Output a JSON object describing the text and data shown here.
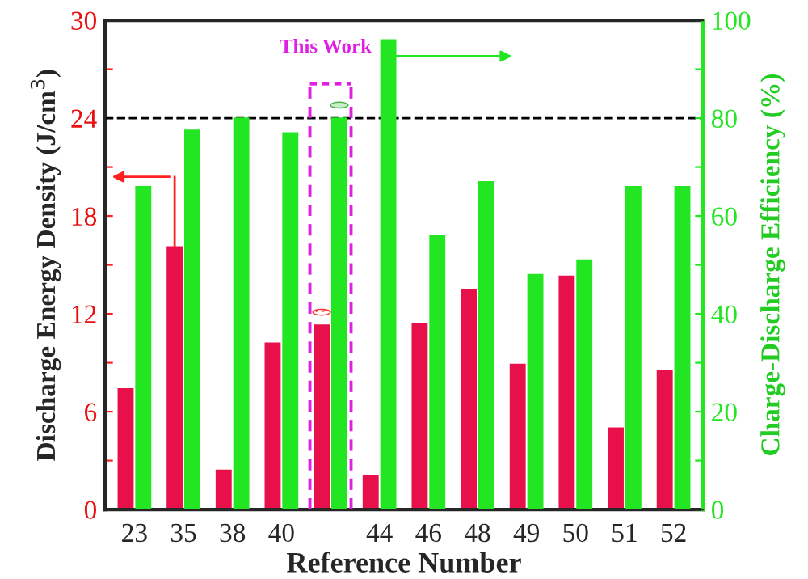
{
  "chart_data": {
    "type": "bar",
    "xlabel": "Reference Number",
    "ylabel": "Discharge Energy Density (J/cm$^{3}$)",
    "y2label": "Charge-Discharge Efficiency (%)",
    "categories": [
      "23",
      "35",
      "38",
      "40",
      null,
      "44",
      "46",
      "48",
      "49",
      "50",
      "51",
      "52"
    ],
    "series": [
      {
        "color": "#e8104a",
        "values": [
          7.4,
          16.1,
          2.4,
          10.2,
          11.3,
          2.1,
          11.4,
          13.5,
          8.9,
          14.3,
          5.0,
          8.5
        ]
      },
      {
        "color": "#22e622",
        "axis": "y2",
        "values": [
          66,
          77.5,
          80,
          77,
          80,
          96,
          56,
          67,
          48,
          51,
          66,
          66
        ]
      }
    ],
    "ylim": [
      0,
      30
    ],
    "yticks": [
      0,
      {
        "value": 3,
        "label": null
      },
      6,
      {
        "value": 9,
        "label": null
      },
      12,
      {
        "value": 15,
        "label": null
      },
      18,
      {
        "value": 21,
        "label": null
      },
      24,
      {
        "value": 27,
        "label": null
      },
      30
    ],
    "y2lim": [
      0,
      100
    ],
    "y2ticks": [
      0,
      {
        "value": 10,
        "label": null
      },
      20,
      {
        "value": 30,
        "label": null
      },
      40,
      {
        "value": 50,
        "label": null
      },
      60,
      {
        "value": 70,
        "label": null
      },
      80,
      {
        "value": 90,
        "label": null
      },
      100
    ],
    "ref_lines": [
      {
        "axis": "y",
        "value": 24,
        "color": "#000000",
        "line_style": "dashed"
      }
    ],
    "annotations": [
      "This Work"
    ],
    "grid": false,
    "legend": false
  }
}
